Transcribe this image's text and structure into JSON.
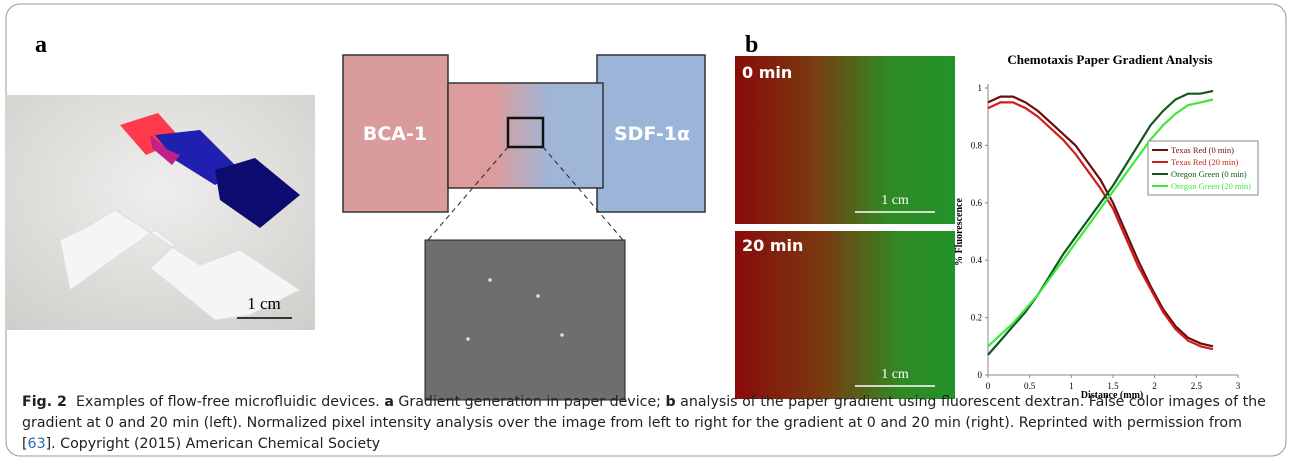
{
  "panel_a": {
    "label": "a",
    "photo_scale": "1 cm",
    "left_box": "BCA-1",
    "right_box": "SDF-1α"
  },
  "panel_b": {
    "label": "b",
    "image_top": {
      "time": "0 min",
      "scale": "1 cm"
    },
    "image_bottom": {
      "time": "20 min",
      "scale": "1 cm"
    }
  },
  "chart_data": {
    "type": "line",
    "title": "Chemotaxis Paper Gradient Analysis",
    "x_label": "Distance (mm)",
    "y_label": "% Fluorescence",
    "x": [
      0,
      0.15,
      0.3,
      0.45,
      0.6,
      0.75,
      0.9,
      1.05,
      1.2,
      1.35,
      1.5,
      1.65,
      1.8,
      1.95,
      2.1,
      2.25,
      2.4,
      2.55,
      2.7
    ],
    "series": [
      {
        "name": "Texas Red (0 min)",
        "color": "#6e0c0c",
        "values": [
          0.95,
          0.97,
          0.97,
          0.95,
          0.92,
          0.88,
          0.84,
          0.8,
          0.74,
          0.68,
          0.6,
          0.5,
          0.4,
          0.31,
          0.23,
          0.17,
          0.13,
          0.11,
          0.1
        ]
      },
      {
        "name": "Texas Red (20 min)",
        "color": "#d01c1c",
        "values": [
          0.93,
          0.95,
          0.95,
          0.93,
          0.9,
          0.86,
          0.82,
          0.77,
          0.71,
          0.65,
          0.58,
          0.48,
          0.38,
          0.3,
          0.22,
          0.16,
          0.12,
          0.1,
          0.09
        ]
      },
      {
        "name": "Oregon Green (0 min)",
        "color": "#0f5a1a",
        "values": [
          0.07,
          0.12,
          0.17,
          0.22,
          0.28,
          0.35,
          0.42,
          0.48,
          0.54,
          0.6,
          0.66,
          0.73,
          0.8,
          0.87,
          0.92,
          0.96,
          0.98,
          0.98,
          0.99
        ]
      },
      {
        "name": "Oregon Green (20 min)",
        "color": "#3fe83f",
        "values": [
          0.1,
          0.14,
          0.18,
          0.23,
          0.28,
          0.34,
          0.4,
          0.46,
          0.52,
          0.58,
          0.64,
          0.7,
          0.76,
          0.82,
          0.87,
          0.91,
          0.94,
          0.95,
          0.96
        ]
      }
    ],
    "xlim": [
      0,
      3
    ],
    "ylim": [
      0,
      1
    ],
    "xticks": [
      0,
      0.5,
      1,
      1.5,
      2,
      2.5,
      3
    ],
    "yticks": [
      0,
      0.2,
      0.4,
      0.6,
      0.8,
      1
    ],
    "legend": "right"
  },
  "caption": {
    "label": "Fig. 2",
    "segments": [
      {
        "text": "Examples of flow-free microfluidic devices. "
      },
      {
        "text": "a",
        "bold": true
      },
      {
        "text": " Gradient generation in paper device; "
      },
      {
        "text": "b",
        "bold": true
      },
      {
        "text": " analysis of the paper gradient using fluorescent dextran. False color images of the gradient at 0 and 20 min (left). Normalized pixel intensity analysis over the image from left to right for the gradient at 0 and 20 min (right). Reprinted with permission from ["
      },
      {
        "text": "63",
        "link": true
      },
      {
        "text": "]. Copyright (2015) American Chemical Society"
      }
    ]
  }
}
